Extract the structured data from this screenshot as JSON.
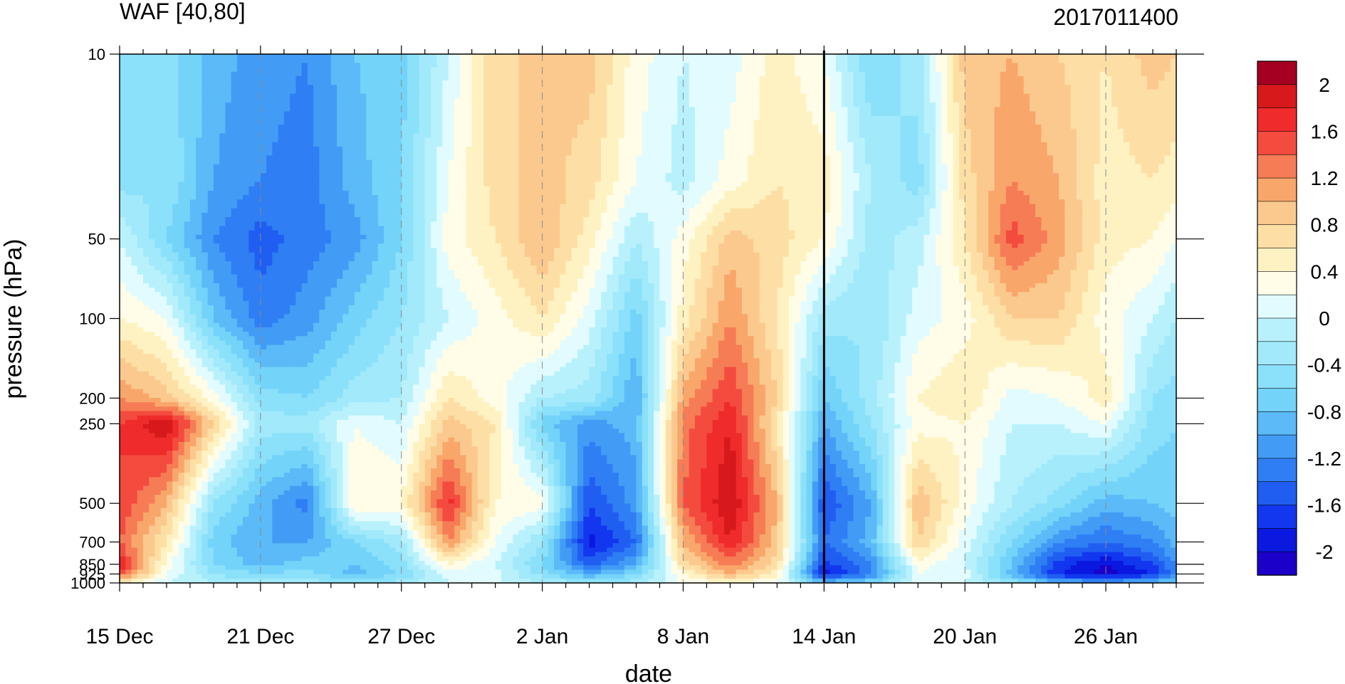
{
  "chart_data": {
    "type": "heatmap",
    "title": "WAF [40,80]",
    "run_label": "2017011400",
    "xlabel": "date",
    "ylabel": "pressure (hPa)",
    "x_ticks": [
      "15 Dec",
      "21 Dec",
      "27 Dec",
      "2 Jan",
      "8 Jan",
      "14 Jan",
      "20 Jan",
      "26 Jan"
    ],
    "x_range": [
      "2016-12-15",
      "2017-01-29"
    ],
    "y_ticks": [
      10,
      50,
      100,
      200,
      250,
      500,
      700,
      850,
      925,
      1000
    ],
    "y_scale": "log",
    "y_inverted": true,
    "ylim": [
      1000,
      10
    ],
    "marker_line_date": "2017-01-14",
    "colorbar": {
      "labels": [
        "2",
        "1.6",
        "1.2",
        "0.8",
        "0.4",
        "0",
        "-0.4",
        "-0.8",
        "-1.2",
        "-1.6",
        "-2"
      ],
      "colors": [
        "#a50021",
        "#d7191c",
        "#ef2b2b",
        "#f44b3f",
        "#f67c56",
        "#f9a66b",
        "#fbc98e",
        "#fddfa6",
        "#fef2c2",
        "#fffce8",
        "#e2fbfe",
        "#b8f1fc",
        "#a1e9fb",
        "#8be0fa",
        "#74d3f9",
        "#5bbaf7",
        "#429cf6",
        "#2f7ef4",
        "#205ef2",
        "#1237ef",
        "#0a18e0",
        "#1a00c8"
      ]
    },
    "columns_x": [
      0,
      2,
      4,
      6,
      8,
      10,
      12,
      14,
      16,
      18,
      20,
      22,
      24,
      26,
      28,
      30,
      32,
      34,
      36,
      38,
      40,
      42,
      44,
      45
    ],
    "levels_hPa": [
      10,
      30,
      50,
      100,
      200,
      250,
      500,
      700,
      850,
      925,
      1000
    ],
    "values": [
      [
        -0.6,
        -0.5,
        -0.9,
        -1.1,
        -1.2,
        -0.8,
        -0.7,
        0.0,
        0.8,
        0.8,
        0.9,
        0.3,
        0.0,
        0.1,
        0.5,
        0.2,
        -0.6,
        -0.3,
        0.9,
        1.0,
        0.8,
        0.6,
        0.9,
        0.8
      ],
      [
        -0.5,
        -0.4,
        -1.0,
        -1.2,
        -1.3,
        -0.9,
        -0.6,
        0.2,
        0.7,
        0.9,
        0.7,
        0.2,
        -0.1,
        0.3,
        0.6,
        0.5,
        -0.2,
        -0.5,
        0.7,
        1.2,
        1.0,
        0.5,
        0.6,
        0.5
      ],
      [
        0.0,
        -0.6,
        -1.2,
        -1.5,
        -1.3,
        -1.1,
        -0.6,
        0.3,
        0.6,
        1.0,
        0.5,
        -0.2,
        0.3,
        0.9,
        0.7,
        0.4,
        -0.3,
        -0.1,
        0.6,
        1.5,
        1.1,
        0.5,
        0.4,
        0.2
      ],
      [
        0.4,
        0.2,
        -0.8,
        -1.3,
        -1.1,
        -0.7,
        -0.4,
        0.0,
        0.3,
        0.6,
        0.1,
        -0.7,
        0.5,
        1.2,
        0.6,
        -0.3,
        -0.4,
        0.1,
        0.3,
        0.8,
        0.8,
        0.3,
        0.0,
        -0.2
      ],
      [
        1.2,
        0.9,
        0.3,
        -0.5,
        -0.6,
        -0.3,
        -0.2,
        0.6,
        0.3,
        -0.2,
        -0.3,
        -1.0,
        1.1,
        1.6,
        0.8,
        -0.8,
        -0.3,
        0.4,
        0.6,
        0.1,
        0.2,
        0.5,
        -0.4,
        -0.5
      ],
      [
        1.6,
        2.0,
        0.8,
        -0.3,
        -0.3,
        0.2,
        0.0,
        0.9,
        0.6,
        -0.7,
        -1.1,
        -0.9,
        1.3,
        1.8,
        0.6,
        -1.0,
        -0.4,
        0.3,
        0.4,
        0.0,
        0.0,
        0.2,
        -0.5,
        -0.6
      ],
      [
        1.6,
        1.0,
        -0.4,
        -0.9,
        -1.3,
        0.4,
        0.4,
        1.7,
        0.4,
        0.3,
        -1.6,
        -1.1,
        1.4,
        2.0,
        1.0,
        -1.6,
        -1.0,
        1.0,
        0.3,
        -0.2,
        -0.5,
        -0.9,
        -0.8,
        -0.7
      ],
      [
        1.4,
        0.6,
        -0.7,
        -1.0,
        -1.0,
        -0.6,
        -0.3,
        1.2,
        0.2,
        -0.4,
        -1.9,
        -1.4,
        1.0,
        1.8,
        0.9,
        -1.4,
        -0.9,
        0.8,
        0.1,
        -0.6,
        -1.2,
        -1.4,
        -1.2,
        -0.9
      ],
      [
        1.8,
        0.3,
        -0.6,
        -0.9,
        -0.7,
        -0.8,
        -0.5,
        0.4,
        0.0,
        -0.6,
        -1.5,
        -1.0,
        0.7,
        1.3,
        0.7,
        -1.7,
        -1.2,
        0.3,
        0.0,
        -0.8,
        -1.7,
        -2.0,
        -1.6,
        -1.2
      ],
      [
        1.5,
        0.2,
        -0.4,
        -0.6,
        -0.5,
        -0.9,
        -0.6,
        0.1,
        0.1,
        -0.5,
        -1.0,
        -0.6,
        0.4,
        1.0,
        0.5,
        -1.9,
        -1.3,
        0.2,
        0.1,
        -0.9,
        -1.8,
        -2.1,
        -1.8,
        -1.3
      ],
      [
        0.6,
        0.0,
        -0.2,
        -0.3,
        -0.3,
        -0.4,
        -0.3,
        0.0,
        0.0,
        -0.2,
        -0.4,
        -0.3,
        0.2,
        0.4,
        0.2,
        -0.8,
        -0.6,
        0.1,
        0.0,
        -0.4,
        -0.9,
        -1.0,
        -0.8,
        -0.6
      ]
    ]
  }
}
